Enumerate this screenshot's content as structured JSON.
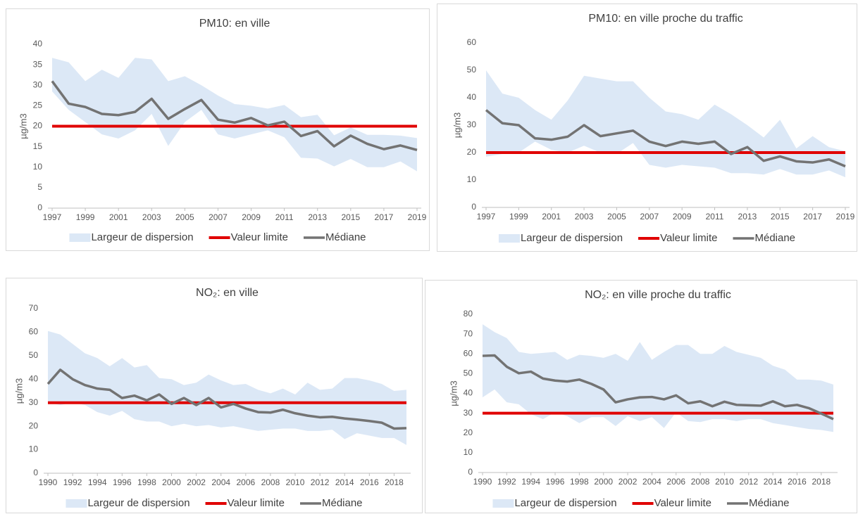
{
  "chart_data": [
    {
      "type": "line",
      "title": "PM10: en ville",
      "y_label": "µg/m3",
      "x": [
        1997,
        1998,
        1999,
        2000,
        2001,
        2002,
        2003,
        2004,
        2005,
        2006,
        2007,
        2008,
        2009,
        2010,
        2011,
        2012,
        2013,
        2014,
        2015,
        2016,
        2017,
        2018,
        2019
      ],
      "xlim": [
        1997,
        2019
      ],
      "xticks": [
        1997,
        1999,
        2001,
        2003,
        2005,
        2007,
        2009,
        2011,
        2013,
        2015,
        2017,
        2019
      ],
      "ylim": [
        0,
        40
      ],
      "yticks": [
        0,
        5,
        10,
        15,
        20,
        25,
        30,
        35,
        40
      ],
      "series": [
        {
          "name": "Largeur de dispersion",
          "color": "#dce8f6",
          "high": [
            36.7,
            35.6,
            31,
            33.8,
            31.8,
            36.7,
            36.3,
            31,
            32.2,
            30,
            27.5,
            25.4,
            25,
            24.3,
            25.2,
            22.2,
            22.8,
            17.8,
            19.7,
            17.9,
            17.9,
            17.7,
            17.1
          ],
          "low": [
            28.5,
            24,
            21,
            18,
            17,
            19,
            23,
            15.2,
            21,
            24,
            18,
            17,
            18,
            19,
            17.3,
            12.3,
            12.1,
            10.2,
            12,
            10,
            10,
            11.4,
            9
          ]
        },
        {
          "name": "Valeur limite",
          "color": "#e00000",
          "values": [
            20,
            20,
            20,
            20,
            20,
            20,
            20,
            20,
            20,
            20,
            20,
            20,
            20,
            20,
            20,
            20,
            20,
            20,
            20,
            20,
            20,
            20,
            20
          ]
        },
        {
          "name": "Médiane",
          "color": "#737373",
          "values": [
            31,
            25.5,
            24.7,
            23,
            22.7,
            23.5,
            26.7,
            21.8,
            24.2,
            26.4,
            21.6,
            20.9,
            22,
            20.2,
            21.1,
            17.6,
            18.8,
            15.1,
            17.7,
            15.7,
            14.4,
            15.3,
            14.2
          ]
        }
      ]
    },
    {
      "type": "line",
      "title": "PM10: en ville proche du traffic",
      "y_label": "µg/m3",
      "x": [
        1997,
        1998,
        1999,
        2000,
        2001,
        2002,
        2003,
        2004,
        2005,
        2006,
        2007,
        2008,
        2009,
        2010,
        2011,
        2012,
        2013,
        2014,
        2015,
        2016,
        2017,
        2018,
        2019
      ],
      "xlim": [
        1997,
        2019
      ],
      "xticks": [
        1997,
        1999,
        2001,
        2003,
        2005,
        2007,
        2009,
        2011,
        2013,
        2015,
        2017,
        2019
      ],
      "ylim": [
        0,
        60
      ],
      "yticks": [
        0,
        10,
        20,
        30,
        40,
        50,
        60
      ],
      "series": [
        {
          "name": "Largeur de dispersion",
          "color": "#dce8f6",
          "high": [
            50,
            41.5,
            40,
            35.5,
            32,
            39,
            48,
            47,
            46,
            46,
            40,
            35,
            34,
            32,
            37.5,
            34,
            30,
            25.5,
            32,
            21.5,
            26,
            22,
            20.5
          ],
          "low": [
            18.5,
            19.5,
            20,
            24,
            21,
            20,
            22.5,
            20,
            19.5,
            23.5,
            15.5,
            14.5,
            15.5,
            15,
            14.5,
            12.5,
            12.5,
            12,
            14,
            12,
            12,
            13.5,
            11
          ]
        },
        {
          "name": "Valeur limite",
          "color": "#e00000",
          "values": [
            20,
            20,
            20,
            20,
            20,
            20,
            20,
            20,
            20,
            20,
            20,
            20,
            20,
            20,
            20,
            20,
            20,
            20,
            20,
            20,
            20,
            20,
            20
          ]
        },
        {
          "name": "Médiane",
          "color": "#737373",
          "values": [
            35.5,
            30.7,
            30,
            25.2,
            24.7,
            25.8,
            30,
            26,
            27,
            28,
            24,
            22.4,
            24,
            23.2,
            24,
            19.5,
            22,
            17,
            18.6,
            16.8,
            16.4,
            17.5,
            15
          ]
        }
      ]
    },
    {
      "type": "line",
      "title": "NO₂: en ville",
      "y_label": "µg/m3",
      "x": [
        1990,
        1991,
        1992,
        1993,
        1994,
        1995,
        1996,
        1997,
        1998,
        1999,
        2000,
        2001,
        2002,
        2003,
        2004,
        2005,
        2006,
        2007,
        2008,
        2009,
        2010,
        2011,
        2012,
        2013,
        2014,
        2015,
        2016,
        2017,
        2018,
        2019
      ],
      "xlim": [
        1990,
        2019
      ],
      "xticks": [
        1990,
        1992,
        1994,
        1996,
        1998,
        2000,
        2002,
        2004,
        2006,
        2008,
        2010,
        2012,
        2014,
        2016,
        2018
      ],
      "ylim": [
        0,
        70
      ],
      "yticks": [
        0,
        10,
        20,
        30,
        40,
        50,
        60,
        70
      ],
      "series": [
        {
          "name": "Largeur de dispersion",
          "color": "#dce8f6",
          "high": [
            60.5,
            59,
            55,
            51,
            49,
            45.5,
            49,
            45,
            46,
            40.5,
            40,
            37.5,
            38.5,
            42,
            39.5,
            37.5,
            38,
            35.5,
            34,
            36,
            33.5,
            38.5,
            35.5,
            36,
            40.5,
            40.5,
            39.5,
            38,
            35,
            35.5
          ],
          "low": [
            30,
            29,
            30,
            29,
            26,
            24.5,
            26.5,
            23,
            22,
            22,
            20,
            21,
            20,
            20.5,
            19.5,
            20,
            19,
            18,
            18.5,
            19,
            19,
            18,
            18,
            18.5,
            14.5,
            17,
            16,
            15,
            15,
            12
          ]
        },
        {
          "name": "Valeur limite",
          "color": "#e00000",
          "values": [
            30,
            30,
            30,
            30,
            30,
            30,
            30,
            30,
            30,
            30,
            30,
            30,
            30,
            30,
            30,
            30,
            30,
            30,
            30,
            30,
            30,
            30,
            30,
            30,
            30,
            30,
            30,
            30,
            30,
            30
          ]
        },
        {
          "name": "Médiane",
          "color": "#737373",
          "values": [
            38,
            44,
            40,
            37.5,
            36,
            35.5,
            32,
            33,
            31,
            33.5,
            29.5,
            32,
            29,
            32,
            28,
            29.5,
            27.5,
            26,
            25.8,
            27,
            25.5,
            24.5,
            23.8,
            24,
            23.3,
            22.8,
            22.2,
            21.5,
            19,
            19.2
          ]
        }
      ]
    },
    {
      "type": "line",
      "title": "NO₂: en ville proche du traffic",
      "y_label": "µg/m3",
      "x": [
        1990,
        1991,
        1992,
        1993,
        1994,
        1995,
        1996,
        1997,
        1998,
        1999,
        2000,
        2001,
        2002,
        2003,
        2004,
        2005,
        2006,
        2007,
        2008,
        2009,
        2010,
        2011,
        2012,
        2013,
        2014,
        2015,
        2016,
        2017,
        2018,
        2019
      ],
      "xlim": [
        1990,
        2019
      ],
      "xticks": [
        1990,
        1992,
        1994,
        1996,
        1998,
        2000,
        2002,
        2004,
        2006,
        2008,
        2010,
        2012,
        2014,
        2016,
        2018
      ],
      "ylim": [
        0,
        80
      ],
      "yticks": [
        0,
        10,
        20,
        30,
        40,
        50,
        60,
        70,
        80
      ],
      "series": [
        {
          "name": "Largeur de dispersion",
          "color": "#dce8f6",
          "high": [
            75,
            71,
            68,
            61,
            60,
            60.5,
            61,
            57,
            59.5,
            59,
            58,
            60,
            56.5,
            66,
            57,
            61,
            64.5,
            64.5,
            60,
            60,
            64,
            61,
            59.5,
            58,
            54,
            52,
            47,
            47,
            46.5,
            44.5
          ],
          "low": [
            38,
            42,
            35.5,
            34.5,
            29.5,
            27,
            30.5,
            28.5,
            25,
            28,
            28,
            23.5,
            28.5,
            26,
            28,
            22.5,
            30.5,
            26,
            25.5,
            27,
            27,
            26,
            27,
            27,
            25,
            24,
            23,
            22,
            21.5,
            20.5
          ]
        },
        {
          "name": "Valeur limite",
          "color": "#e00000",
          "values": [
            30,
            30,
            30,
            30,
            30,
            30,
            30,
            30,
            30,
            30,
            30,
            30,
            30,
            30,
            30,
            30,
            30,
            30,
            30,
            30,
            30,
            30,
            30,
            30,
            30,
            30,
            30,
            30,
            30,
            30
          ]
        },
        {
          "name": "Médiane",
          "color": "#737373",
          "values": [
            59,
            59.2,
            53.5,
            50.2,
            51,
            47.5,
            46.5,
            46,
            47,
            44.8,
            42,
            35.5,
            37,
            38,
            38.2,
            37,
            39,
            35,
            36,
            33.5,
            35.8,
            34.2,
            34,
            33.8,
            36,
            33.5,
            34.2,
            32.5,
            29.8,
            27
          ]
        }
      ]
    }
  ]
}
